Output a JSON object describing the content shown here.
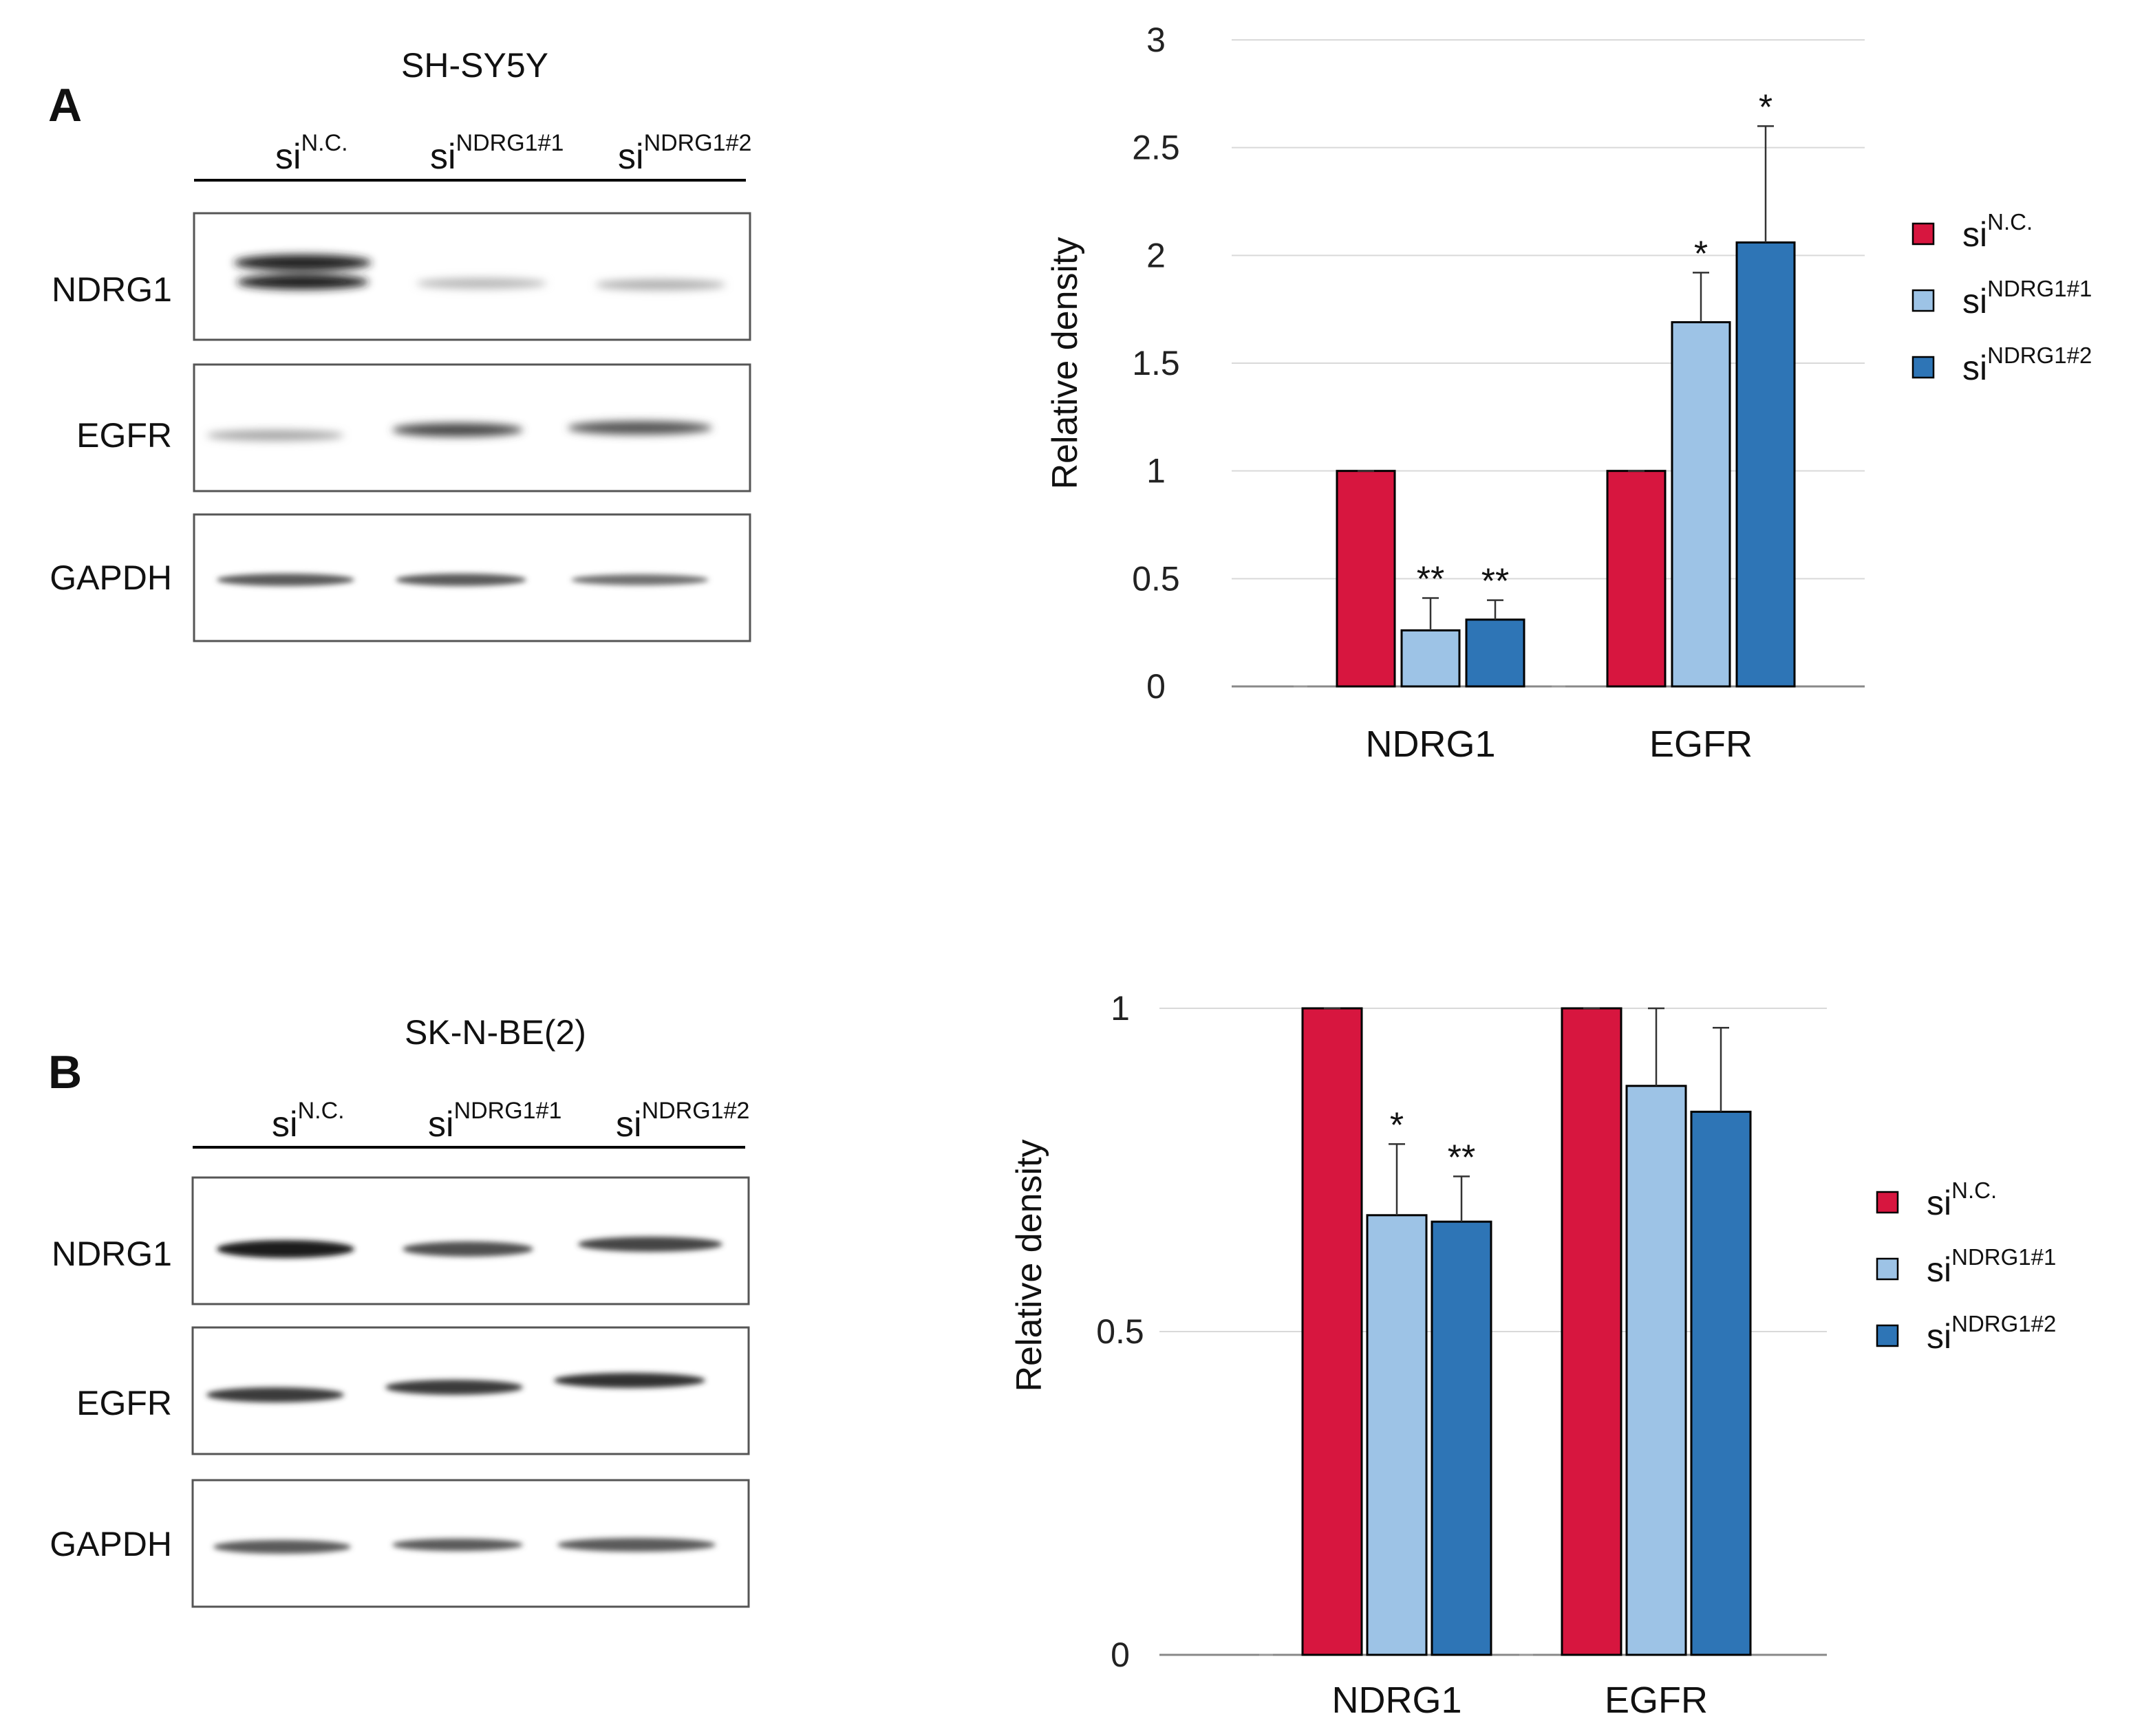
{
  "legend_labels": [
    {
      "base": "si",
      "sup": "N.C."
    },
    {
      "base": "si",
      "sup": "NDRG1#1"
    },
    {
      "base": "si",
      "sup": "NDRG1#2"
    }
  ],
  "colors": {
    "siNC": "#D7163F",
    "siNDRG1_1": "#9DC3E6",
    "siNDRG1_2": "#2E75B6",
    "grid": "#d9d9d9",
    "axis": "#888888"
  },
  "panels": [
    {
      "letter": "A",
      "cell_line": "SH-SY5Y",
      "proteins": [
        "NDRG1",
        "EGFR",
        "GAPDH"
      ]
    },
    {
      "letter": "B",
      "cell_line": "SK-N-BE(2)",
      "proteins": [
        "NDRG1",
        "EGFR",
        "GAPDH"
      ]
    }
  ],
  "chart_data": [
    {
      "type": "bar",
      "panel": "A",
      "ylabel": "Relative density",
      "xlabel": "",
      "ylim": [
        0,
        3
      ],
      "yticks": [
        0,
        0.5,
        1,
        1.5,
        2,
        2.5,
        3
      ],
      "ytick_labels": [
        "0",
        "0.5",
        "1",
        "1.5",
        "2",
        "2.5",
        "3"
      ],
      "grid": true,
      "legend_position": "right",
      "categories": [
        "NDRG1",
        "EGFR"
      ],
      "series": [
        {
          "name": "siN.C.",
          "values": [
            1.0,
            1.0
          ],
          "errors": [
            0,
            0
          ],
          "significance": [
            "",
            ""
          ]
        },
        {
          "name": "siNDRG1#1",
          "values": [
            0.26,
            1.69
          ],
          "errors": [
            0.15,
            0.23
          ],
          "significance": [
            "**",
            "*"
          ]
        },
        {
          "name": "siNDRG1#2",
          "values": [
            0.31,
            2.06
          ],
          "errors": [
            0.09,
            0.54
          ],
          "significance": [
            "**",
            "*"
          ]
        }
      ]
    },
    {
      "type": "bar",
      "panel": "B",
      "ylabel": "Relative density",
      "xlabel": "",
      "ylim": [
        0,
        1
      ],
      "yticks": [
        0,
        0.5,
        1
      ],
      "ytick_labels": [
        "0",
        "0.5",
        "1"
      ],
      "grid": true,
      "legend_position": "right",
      "categories": [
        "NDRG1",
        "EGFR"
      ],
      "series": [
        {
          "name": "siN.C.",
          "values": [
            1.0,
            1.0
          ],
          "errors": [
            0,
            0
          ],
          "significance": [
            "",
            ""
          ]
        },
        {
          "name": "siNDRG1#1",
          "values": [
            0.68,
            0.88
          ],
          "errors": [
            0.11,
            0.12
          ],
          "significance": [
            "*",
            ""
          ]
        },
        {
          "name": "siNDRG1#2",
          "values": [
            0.67,
            0.84
          ],
          "errors": [
            0.07,
            0.13
          ],
          "significance": [
            "**",
            ""
          ]
        }
      ]
    }
  ]
}
